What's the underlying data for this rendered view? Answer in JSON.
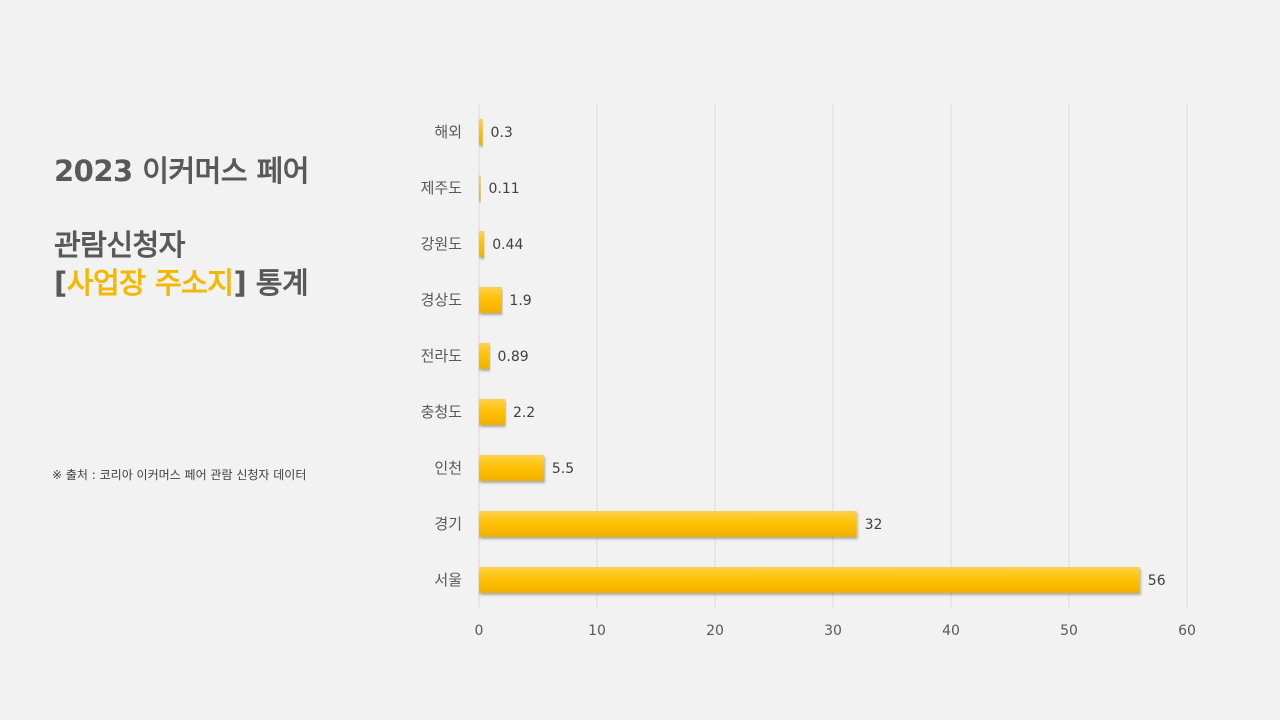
{
  "title": {
    "line1": "2023 이커머스 페어",
    "line2": "관람신청자",
    "line3_prefix": "[",
    "line3_highlight": "사업장 주소지",
    "line3_suffix": "] 통계"
  },
  "source_note": "※ 출처 : 코리아 이커머스 페어 관람 신청자 데이터",
  "colors": {
    "bar": "#ffc000",
    "highlight": "#f5b800",
    "text": "#595959"
  },
  "chart_data": {
    "type": "bar",
    "orientation": "horizontal",
    "categories": [
      "해외",
      "제주도",
      "강원도",
      "경상도",
      "전라도",
      "충청도",
      "인천",
      "경기",
      "서울"
    ],
    "values": [
      0.3,
      0.11,
      0.44,
      1.9,
      0.89,
      2.2,
      5.5,
      32,
      56
    ],
    "value_labels": [
      "0.3",
      "0.11",
      "0.44",
      "1.9",
      "0.89",
      "2.2",
      "5.5",
      "32",
      "56"
    ],
    "xlim": [
      0,
      60
    ],
    "xticks": [
      0,
      10,
      20,
      30,
      40,
      50,
      60
    ],
    "grid": true,
    "legend": "none"
  }
}
